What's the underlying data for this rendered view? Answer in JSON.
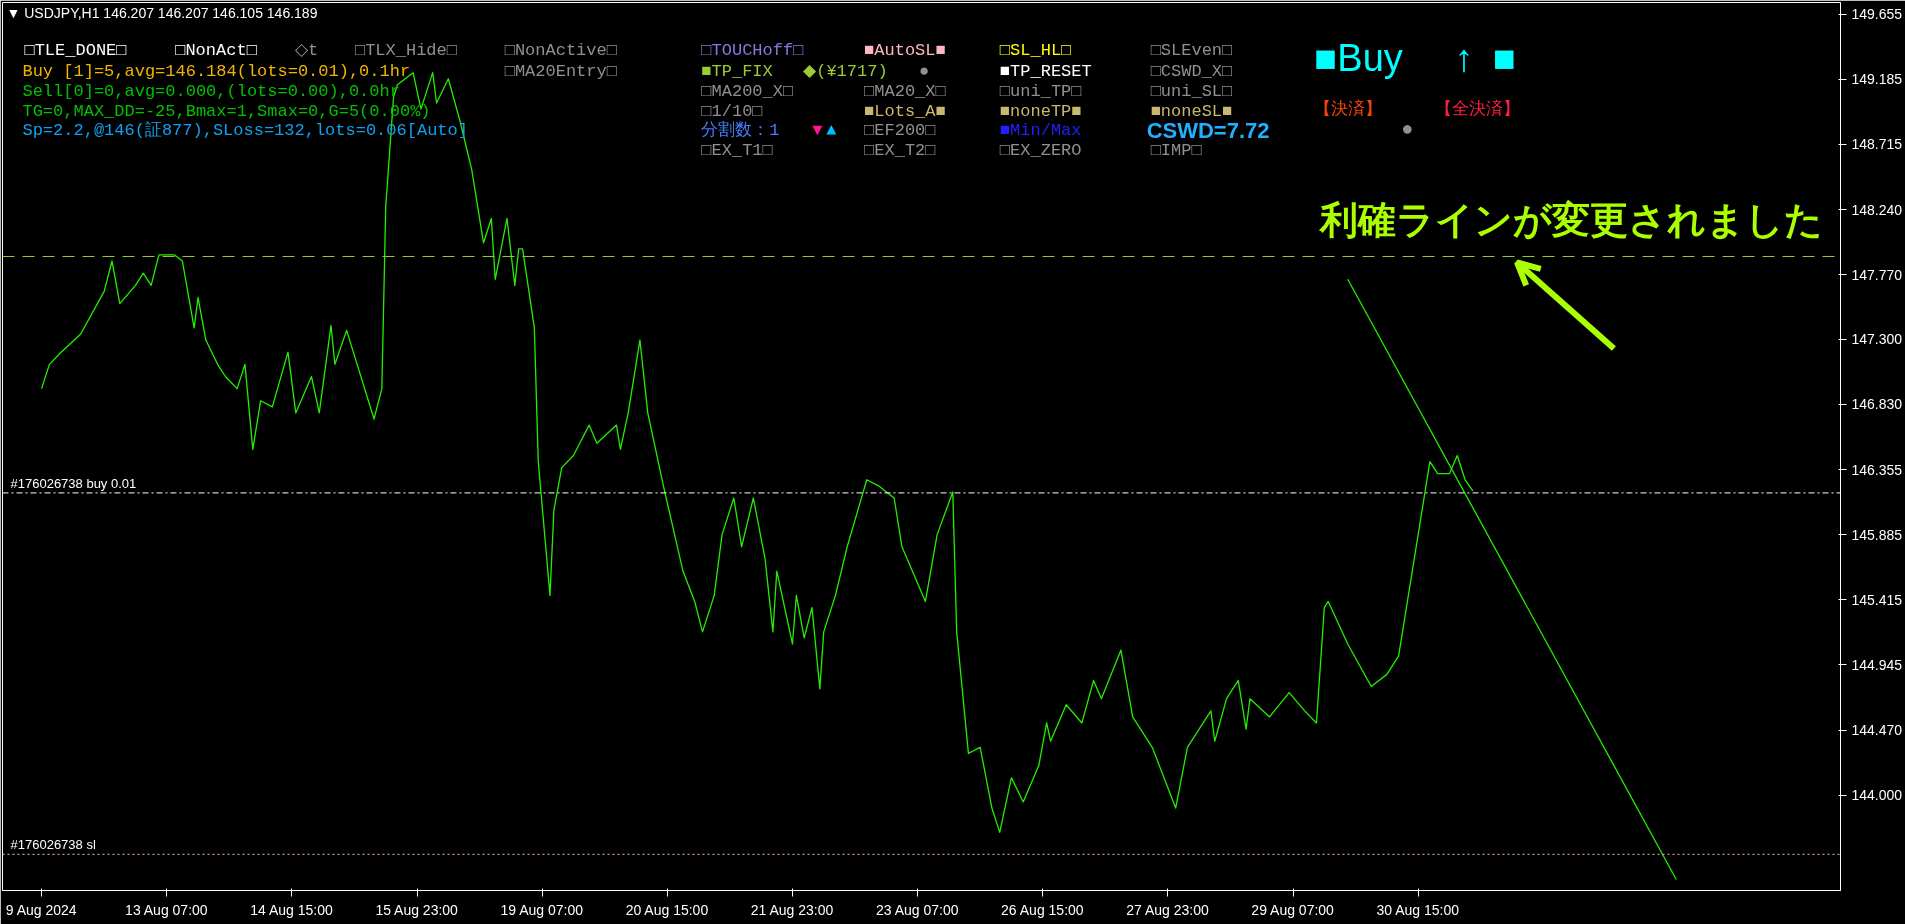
{
  "chart_data": {
    "type": "line",
    "title": "▼ USDJPY,H1 146.207 146.207 146.105 146.189",
    "categories": [
      "9 Aug 2024",
      null,
      null,
      null,
      null,
      null,
      null,
      null,
      null,
      null,
      null,
      null,
      null,
      null,
      null,
      null,
      null,
      null,
      null,
      null,
      null,
      null,
      null,
      null,
      null,
      null,
      null,
      null,
      null,
      null,
      null,
      null,
      "13 Aug 07:00",
      null,
      null,
      null,
      null,
      null,
      null,
      null,
      null,
      null,
      null,
      null,
      null,
      null,
      null,
      null,
      null,
      null,
      null,
      null,
      null,
      null,
      null,
      null,
      null,
      null,
      null,
      null,
      null,
      null,
      null,
      null,
      "14 Aug 15:00",
      null,
      null,
      null,
      null,
      null,
      null,
      null,
      null,
      null,
      null,
      null,
      null,
      null,
      null,
      null,
      null,
      null,
      null,
      null,
      null,
      null,
      null,
      null,
      null,
      null,
      null,
      null,
      null,
      null,
      null,
      null,
      "15 Aug 23:00",
      null,
      null,
      null,
      null,
      null,
      null,
      null,
      null,
      null,
      null,
      null,
      null,
      null,
      null,
      null,
      null,
      null,
      null,
      null,
      null,
      null,
      null,
      null,
      null,
      null,
      null,
      null,
      null,
      null,
      null,
      null,
      "19 Aug 07:00",
      null,
      null,
      null,
      null,
      null,
      null,
      null,
      null,
      null,
      null,
      null,
      null,
      null,
      null,
      null,
      null,
      null,
      null,
      null,
      null,
      null,
      null,
      null,
      null,
      null,
      null,
      null,
      null,
      null,
      null,
      null,
      "20 Aug 15:00",
      null,
      null,
      null,
      null,
      null,
      null,
      null,
      null,
      null,
      null,
      null,
      null,
      null,
      null,
      null,
      null,
      null,
      null,
      null,
      null,
      null,
      null,
      null,
      null,
      null,
      null,
      null,
      null,
      null,
      null,
      null,
      "21 Aug 23:00",
      null,
      null,
      null,
      null,
      null,
      null,
      null,
      null,
      null,
      null,
      null,
      null,
      null,
      null,
      null,
      null,
      null,
      null,
      null,
      null,
      null,
      null,
      null,
      null,
      null,
      null,
      null,
      null,
      null,
      null,
      null,
      "23 Aug 07:00",
      null,
      null,
      null,
      null,
      null,
      null,
      null,
      null,
      null,
      null,
      null,
      null,
      null,
      null,
      null,
      null,
      null,
      null,
      null,
      null,
      null,
      null,
      null,
      null,
      null,
      null,
      null,
      null,
      null,
      null,
      null,
      "26 Aug 15:00",
      null,
      null,
      null,
      null,
      null,
      null,
      null,
      null,
      null,
      null,
      null,
      null,
      null,
      null,
      null,
      null,
      null,
      null,
      null,
      null,
      null,
      null,
      null,
      null,
      null,
      null,
      null,
      null,
      null,
      null,
      null,
      "27 Aug 23:00",
      null,
      null,
      null,
      null,
      null,
      null,
      null,
      null,
      null,
      null,
      null,
      null,
      null,
      null,
      null,
      null,
      null,
      null,
      null,
      null,
      null,
      null,
      null,
      null,
      null,
      null,
      null,
      null,
      null,
      null,
      null,
      "29 Aug 07:00",
      null,
      null,
      null,
      null,
      null,
      null,
      null,
      null,
      null,
      null,
      null,
      null,
      null,
      null,
      null,
      null,
      null,
      null,
      null,
      null,
      null,
      null,
      null,
      null,
      null,
      null,
      null,
      null,
      null,
      null,
      null,
      "30 Aug 15:00",
      null,
      null,
      null,
      null,
      null,
      null,
      null,
      null,
      null,
      null,
      null,
      null,
      null,
      null,
      null,
      null,
      null,
      null,
      null,
      null,
      null,
      null,
      null,
      null,
      null,
      null,
      null,
      null,
      null,
      null,
      null,
      null,
      null,
      null,
      null,
      null,
      null,
      null,
      null,
      null,
      null,
      null,
      null,
      null,
      null,
      null,
      null,
      null,
      null,
      null,
      null,
      null,
      null,
      null,
      null,
      null,
      null,
      null,
      null,
      null,
      null,
      null,
      null,
      null,
      null,
      null,
      null,
      null,
      null,
      null,
      null,
      null,
      null,
      null,
      null,
      null,
      null,
      null,
      null,
      null,
      null,
      null,
      null,
      null,
      null,
      null,
      null,
      null,
      null,
      null,
      null,
      null,
      null,
      null,
      null,
      null,
      null,
      null,
      null,
      null,
      null,
      null,
      null,
      null,
      null,
      null,
      null,
      null
    ],
    "series": [
      {
        "color": "#22ee00",
        "values": [
          146.944,
          null,
          147.12,
          null,
          null,
          147.208,
          null,
          null,
          null,
          null,
          147.34,
          null,
          null,
          null,
          null,
          null,
          147.648,
          null,
          147.868,
          null,
          147.56,
          null,
          null,
          null,
          147.692,
          null,
          147.78,
          null,
          147.692,
          null,
          147.912,
          null,
          null,
          null,
          147.912,
          null,
          147.868,
          null,
          null,
          147.384,
          147.604,
          null,
          147.296,
          null,
          null,
          147.12,
          null,
          147.032,
          null,
          null,
          146.944,
          null,
          147.12,
          null,
          146.504,
          null,
          146.856,
          null,
          null,
          146.812,
          null,
          null,
          null,
          147.208,
          null,
          146.768,
          null,
          null,
          null,
          147.032,
          null,
          146.768,
          null,
          null,
          147.402,
          147.12,
          null,
          null,
          147.366,
          null,
          null,
          null,
          null,
          null,
          null,
          146.724,
          null,
          146.944,
          148.264,
          null,
          149.056,
          149.144,
          null,
          null,
          null,
          149.232,
          null,
          148.968,
          null,
          null,
          149.232,
          149.012,
          null,
          null,
          149.188,
          null,
          null,
          148.88,
          null,
          null,
          148.528,
          null,
          null,
          147.999,
          null,
          148.176,
          147.736,
          null,
          null,
          148.176,
          null,
          147.692,
          147.956,
          147.956,
          null,
          null,
          147.384,
          146.416,
          null,
          null,
          145.447,
          146.064,
          null,
          146.372,
          null,
          null,
          146.46,
          null,
          null,
          null,
          146.68,
          null,
          146.548,
          null,
          null,
          null,
          null,
          146.68,
          146.504,
          null,
          146.768,
          null,
          null,
          147.296,
          null,
          146.768,
          null,
          null,
          null,
          146.24,
          null,
          null,
          null,
          null,
          145.623,
          null,
          null,
          145.403,
          null,
          145.183,
          null,
          null,
          145.447,
          null,
          145.887,
          null,
          null,
          146.152,
          null,
          145.799,
          null,
          null,
          146.152,
          null,
          null,
          145.711,
          null,
          145.183,
          145.623,
          null,
          null,
          null,
          145.095,
          145.447,
          null,
          145.139,
          null,
          145.359,
          null,
          144.77,
          145.183,
          null,
          null,
          145.447,
          null,
          null,
          145.799,
          null,
          null,
          null,
          null,
          146.284,
          null,
          null,
          146.24,
          null,
          null,
          null,
          146.152,
          null,
          145.799,
          null,
          null,
          null,
          145.535,
          null,
          145.403,
          null,
          null,
          145.887,
          null,
          null,
          null,
          146.196,
          145.183,
          null,
          null,
          144.303,
          null,
          null,
          144.347,
          null,
          null,
          143.907,
          null,
          143.731,
          null,
          null,
          144.127,
          null,
          null,
          143.951,
          null,
          null,
          null,
          144.215,
          null,
          144.523,
          144.391,
          null,
          null,
          null,
          144.655,
          null,
          null,
          null,
          144.523,
          null,
          null,
          144.831,
          null,
          144.699,
          null,
          null,
          null,
          null,
          145.051,
          null,
          null,
          144.567,
          null,
          null,
          null,
          null,
          144.347,
          null,
          null,
          null,
          null,
          null,
          143.907,
          null,
          null,
          144.347,
          null,
          null,
          144.479,
          null,
          null,
          144.611,
          144.391,
          null,
          null,
          144.699,
          null,
          null,
          144.831,
          null,
          144.479,
          144.699,
          null,
          null,
          null,
          null,
          144.567,
          null,
          null,
          null,
          null,
          144.743,
          null,
          null,
          null,
          144.611,
          null,
          null,
          144.523,
          null,
          145.359,
          145.403,
          null,
          null,
          null,
          null,
          145.095,
          null,
          null,
          null,
          null,
          null,
          144.787,
          null,
          null,
          null,
          144.875,
          null,
          null,
          145.007,
          null,
          null,
          null,
          null,
          145.887,
          null,
          null,
          146.416,
          null,
          146.328,
          null,
          null,
          146.328,
          null,
          146.46,
          null,
          146.284,
          null,
          146.204,
          null,
          null,
          null,
          null,
          null,
          null,
          null,
          null,
          null,
          null,
          null,
          null,
          null,
          null,
          null,
          null,
          null,
          null,
          null,
          null,
          null,
          null,
          null,
          null,
          null,
          null,
          null,
          null,
          null,
          null,
          null,
          null,
          null,
          null,
          null,
          null,
          null,
          null,
          null,
          null,
          null,
          null,
          null,
          null,
          null,
          null,
          null,
          null,
          null,
          null,
          null,
          null,
          null,
          null,
          null,
          null,
          null,
          null,
          null,
          null,
          null,
          null,
          null,
          null,
          null,
          null,
          null,
          null,
          null,
          null,
          null,
          null,
          null,
          null,
          null,
          null,
          null,
          null,
          null,
          null,
          null,
          null,
          null,
          null,
          null,
          null,
          null,
          null,
          null,
          null,
          null,
          null,
          null,
          null
        ]
      },
      {
        "type": "line",
        "color": "#22ee00",
        "values": [
          null,
          null,
          null,
          null,
          null,
          null,
          null,
          null,
          null,
          null,
          null,
          null,
          null,
          null,
          null,
          null,
          null,
          null,
          null,
          null,
          null,
          null,
          null,
          null,
          null,
          null,
          null,
          null,
          null,
          null,
          null,
          null,
          null,
          null,
          null,
          null,
          null,
          null,
          null,
          null,
          null,
          null,
          null,
          null,
          null,
          null,
          null,
          null,
          null,
          null,
          null,
          null,
          null,
          null,
          null,
          null,
          null,
          null,
          null,
          null,
          null,
          null,
          null,
          null,
          null,
          null,
          null,
          null,
          null,
          null,
          null,
          null,
          null,
          null,
          null,
          null,
          null,
          null,
          null,
          null,
          null,
          null,
          null,
          null,
          null,
          null,
          null,
          null,
          null,
          null,
          null,
          null,
          null,
          null,
          null,
          null,
          null,
          null,
          null,
          null,
          null,
          null,
          null,
          null,
          null,
          null,
          null,
          null,
          null,
          null,
          null,
          null,
          null,
          null,
          null,
          null,
          null,
          null,
          null,
          null,
          null,
          null,
          null,
          null,
          null,
          null,
          null,
          null,
          null,
          null,
          null,
          null,
          null,
          null,
          null,
          null,
          null,
          null,
          null,
          null,
          null,
          null,
          null,
          null,
          null,
          null,
          null,
          null,
          null,
          null,
          null,
          null,
          null,
          null,
          null,
          null,
          null,
          null,
          null,
          null,
          null,
          null,
          null,
          null,
          null,
          null,
          null,
          null,
          null,
          null,
          null,
          null,
          null,
          null,
          null,
          null,
          null,
          null,
          null,
          null,
          null,
          null,
          null,
          null,
          null,
          null,
          null,
          null,
          null,
          null,
          null,
          null,
          null,
          null,
          null,
          null,
          null,
          null,
          null,
          null,
          null,
          null,
          null,
          null,
          null,
          null,
          null,
          null,
          null,
          null,
          null,
          null,
          null,
          null,
          null,
          null,
          null,
          null,
          null,
          null,
          null,
          null,
          null,
          null,
          null,
          null,
          null,
          null,
          null,
          null,
          null,
          null,
          null,
          null,
          null,
          null,
          null,
          null,
          null,
          null,
          null,
          null,
          null,
          null,
          null,
          null,
          null,
          null,
          null,
          null,
          null,
          null,
          null,
          null,
          null,
          null,
          null,
          null,
          null,
          null,
          null,
          null,
          null,
          null,
          null,
          null,
          null,
          null,
          null,
          null,
          null,
          null,
          null,
          null,
          null,
          null,
          null,
          null,
          null,
          null,
          null,
          null,
          null,
          null,
          null,
          null,
          null,
          null,
          null,
          null,
          null,
          null,
          null,
          null,
          null,
          null,
          null,
          null,
          null,
          null,
          null,
          null,
          null,
          null,
          null,
          null,
          null,
          null,
          null,
          null,
          null,
          null,
          null,
          null,
          null,
          null,
          null,
          null,
          null,
          null,
          null,
          null,
          null,
          null,
          null,
          null,
          null,
          null,
          null,
          null,
          null,
          null,
          null,
          null,
          147.736,
          null,
          null,
          null,
          null,
          null,
          null,
          null,
          null,
          null,
          null,
          null,
          null,
          null,
          null,
          null,
          null,
          null,
          null,
          null,
          null,
          null,
          null,
          null,
          null,
          null,
          null,
          null,
          null,
          null,
          null,
          null,
          null,
          null,
          null,
          null,
          null,
          null,
          null,
          null,
          null,
          null,
          null,
          null,
          null,
          null,
          null,
          null,
          null,
          null,
          null,
          null,
          null,
          null,
          null,
          null,
          null,
          null,
          null,
          null,
          null,
          null,
          null,
          null,
          null,
          null,
          null,
          null,
          null,
          null,
          null,
          null,
          null,
          null,
          null,
          null,
          null,
          null,
          null,
          null,
          null,
          null,
          null,
          null,
          143.39,
          null,
          null,
          null,
          null,
          null,
          null,
          null,
          null,
          null,
          null,
          null,
          null,
          null,
          null,
          null,
          null,
          null,
          null,
          null,
          null,
          null,
          null,
          null,
          null,
          null,
          null,
          null,
          null,
          null,
          null,
          null,
          null,
          null,
          null,
          null,
          null,
          null,
          null,
          null,
          null,
          null,
          null
        ]
      }
    ],
    "ylim": [
      143.31,
      149.74
    ],
    "yticks": [
      149.655,
      149.185,
      148.715,
      {
        "value": 148.24,
        "label": "148.240"
      },
      {
        "value": 147.77,
        "label": "147.770"
      },
      {
        "value": 147.3,
        "label": "147.300"
      },
      {
        "value": 146.83,
        "label": "146.830"
      },
      146.355,
      145.885,
      145.415,
      144.945,
      {
        "value": 144.47,
        "label": "144.470"
      },
      {
        "value": 144.0,
        "label": "144.000"
      }
    ],
    "ref_lines": [
      {
        "axis": "y",
        "value": 147.901,
        "label": null,
        "color": "#9acd32",
        "line_style": "dashed"
      },
      {
        "axis": "y",
        "value": 146.189,
        "label": "#176026738 buy 0.01",
        "color": "#ffffff",
        "line_style": "dashdot"
      },
      {
        "axis": "y",
        "value": 143.572,
        "label": "#176026738 sl",
        "color": "#ffb6c1",
        "line_style": "dotted"
      }
    ],
    "annotations": [
      "□TLE_DONE□",
      "□NonAct□",
      "◇t",
      "□TLX_Hide□",
      "□NonActive□",
      "□MA20Entry□",
      "Buy [1]=5,avg=146.184(lots=0.01),0.1hr",
      "Sell[0]=0,avg=0.000,(lots=0.00),0.0hr",
      "TG=0,MAX_DD=-25,Bmax=1,Smax=0,G=5(0.00%)",
      "Sp=2.2,@146(証877),SLoss=132,lots=0.06[Auto]",
      "□TOUCHoff□",
      "■AutoSL■",
      "□SL_HL□",
      "□SLEven□",
      "■TP_FIX",
      "◆(¥1717)",
      "●",
      "■TP_RESET",
      "□CSWD_X□",
      "□MA200_X□",
      "□MA20_X□",
      "□uni_TP□",
      "□uni_SL□",
      "□1/10□",
      "■Lots_A■",
      "■noneTP■",
      "■noneSL■",
      "分割数：1",
      "▼",
      "▲",
      "□EF200□",
      "■Min/Max",
      "CSWD=7.72",
      "□EX_T1□",
      "□EX_T2□",
      "□EX_ZERO",
      "□IMP□",
      "■Buy",
      "↑",
      "■",
      "【決済】",
      "【全決済】",
      "●",
      "利確ラインが変更されました"
    ]
  }
}
